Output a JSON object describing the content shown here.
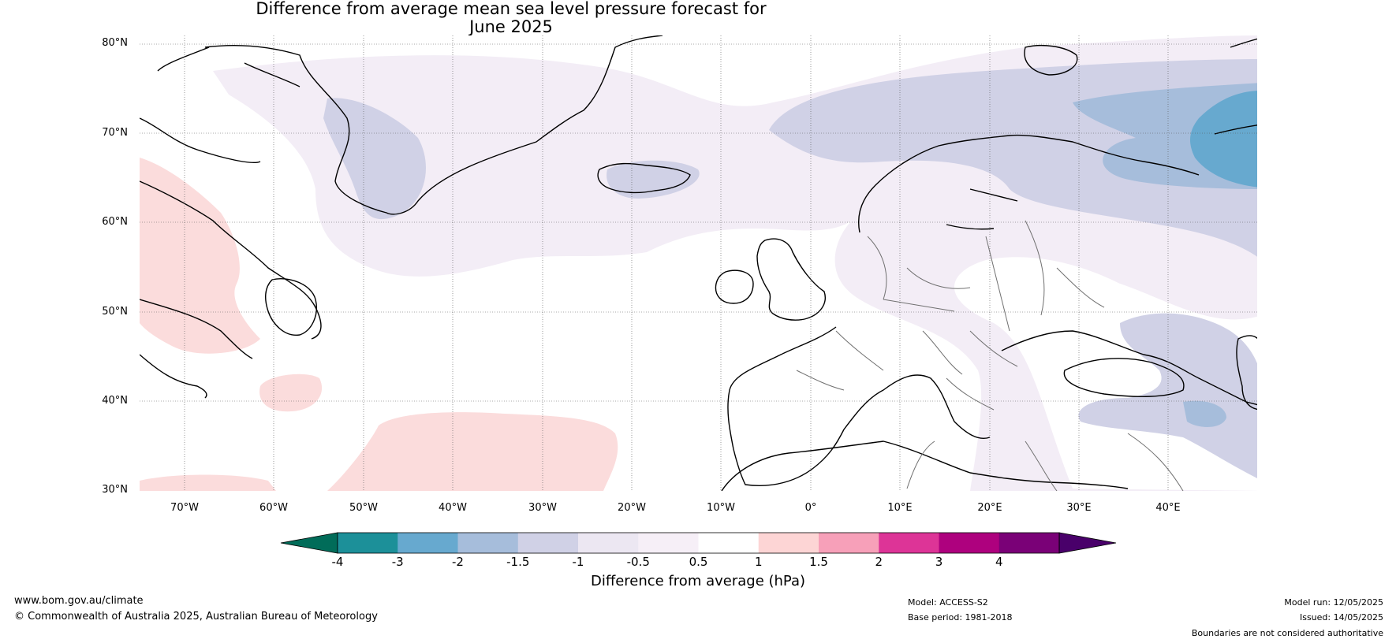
{
  "title": {
    "line1": "Difference from average mean sea level pressure forecast for",
    "line2": "June 2025"
  },
  "map": {
    "lat_labels": [
      "80°N",
      "70°N",
      "60°N",
      "50°N",
      "40°N",
      "30°N"
    ],
    "lon_labels": [
      "70°W",
      "60°W",
      "50°W",
      "40°W",
      "30°W",
      "20°W",
      "10°W",
      "0°",
      "10°E",
      "20°E",
      "30°E",
      "40°E"
    ],
    "extent": {
      "lon_min": -75,
      "lon_max": 50,
      "lat_min": 30,
      "lat_max": 81
    },
    "colors": {
      "land_border": "#000000",
      "country_border": "#707070",
      "gridline": "#555555"
    },
    "regions_legend": {
      "pos_0_5_to_1": "#fbdcdc",
      "neg_0_5_to_1": "#f3edf6",
      "neg_1_to_1_5": "#d0d1e6",
      "neg_1_5_to_2": "#a6bddb",
      "neg_2_to_3": "#67a9cf"
    }
  },
  "colorbar": {
    "label": "Difference from average (hPa)",
    "ticks": [
      "-4",
      "-3",
      "-2",
      "-1.5",
      "-1",
      "-0.5",
      "0.5",
      "1",
      "1.5",
      "2",
      "3",
      "4"
    ],
    "colors": [
      "#016c59",
      "#1c9099",
      "#67a9cf",
      "#a6bddb",
      "#d0d1e6",
      "#ece7f2",
      "#f6eff7",
      "#ffffff",
      "#fdd5d5",
      "#f7a0b9",
      "#dd3497",
      "#ae017e",
      "#7a0177",
      "#49006a"
    ],
    "under_color": "#016c59",
    "over_color": "#49006a"
  },
  "footer": {
    "website": "www.bom.gov.au/climate",
    "copyright": "© Commonwealth of Australia 2025, Australian Bureau of Meteorology",
    "model": "Model: ACCESS-S2",
    "base_period": "Base period: 1981-2018",
    "model_run": "Model run: 12/05/2025",
    "issued": "Issued: 14/05/2025",
    "disclaimer": "Boundaries are not considered authoritative"
  }
}
